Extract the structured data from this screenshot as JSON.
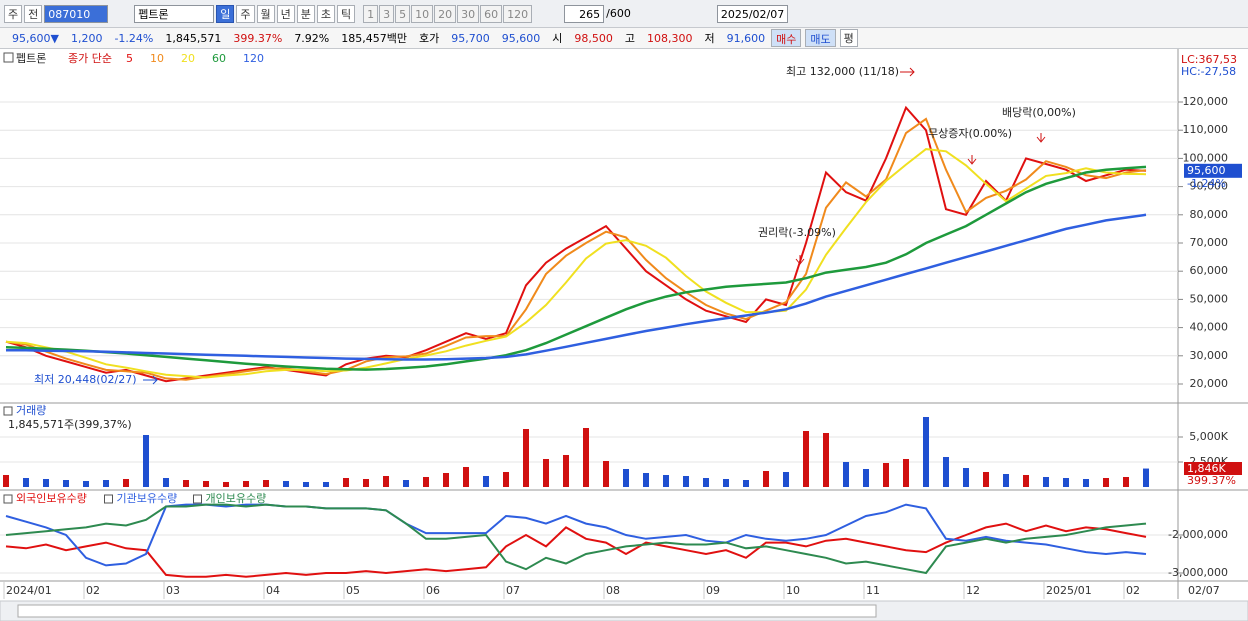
{
  "toolbar": {
    "mode": "주",
    "prev": "전",
    "code": "087010",
    "name": "펩트론",
    "periods": [
      "일",
      "주",
      "월",
      "년",
      "분",
      "초",
      "틱"
    ],
    "intervals": [
      "1",
      "3",
      "5",
      "10",
      "20",
      "30",
      "60",
      "120"
    ],
    "count": "265",
    "count_max": "/600",
    "date": "2025/02/07"
  },
  "info_bar": {
    "price": "95,600▼",
    "change": "1,200",
    "change_rate": "-1.24%",
    "volume": "1,845,571",
    "volume_rate": "399.37%",
    "turnover": "7.92%",
    "amount": "185,457백만",
    "quote_label": "호가",
    "ask": "95,700",
    "bid": "95,600",
    "open_label": "시",
    "open": "98,500",
    "high_label": "고",
    "high": "108,300",
    "low_label": "저",
    "low": "91,600",
    "buy": "매수",
    "sell": "매도",
    "avg": "평"
  },
  "chart_data": [
    {
      "type": "line",
      "title": "펩트론",
      "legend_title": "종가 단순",
      "categories": [
        "2024/01",
        null,
        null,
        null,
        "02",
        null,
        null,
        null,
        "03",
        null,
        null,
        null,
        null,
        "04",
        null,
        null,
        null,
        "05",
        null,
        null,
        null,
        "06",
        null,
        null,
        null,
        "07",
        null,
        null,
        null,
        null,
        "08",
        null,
        null,
        null,
        null,
        "09",
        null,
        null,
        null,
        "10",
        null,
        null,
        null,
        "11",
        null,
        null,
        null,
        null,
        "12",
        null,
        null,
        null,
        "2025/01",
        null,
        null,
        null,
        "02",
        null
      ],
      "x_end_label": "02/07",
      "ylim": [
        13260,
        137730
      ],
      "yticks": [
        {
          "value": 20000,
          "label": "20,000"
        },
        {
          "value": 30000,
          "label": "30,000"
        },
        {
          "value": 40000,
          "label": "40,000"
        },
        {
          "value": 50000,
          "label": "50,000"
        },
        {
          "value": 60000,
          "label": "60,000"
        },
        {
          "value": 70000,
          "label": "70,000"
        },
        {
          "value": 80000,
          "label": "80,000"
        },
        {
          "value": 90000,
          "label": "90,000"
        },
        {
          "value": 100000,
          "label": "100,000"
        },
        {
          "value": 110000,
          "label": "110,000"
        },
        {
          "value": 120000,
          "label": "120,000"
        }
      ],
      "grid": true,
      "series": [
        {
          "name": "5",
          "color": "#e01010",
          "values": [
            35000,
            33000,
            30000,
            28000,
            26000,
            24000,
            25000,
            23000,
            21000,
            22000,
            23000,
            24000,
            25000,
            26000,
            25000,
            24000,
            23000,
            27000,
            29000,
            30000,
            29500,
            32000,
            35000,
            38000,
            36000,
            38000,
            55000,
            63000,
            68000,
            72000,
            76000,
            68000,
            60000,
            55000,
            50000,
            46000,
            44000,
            42000,
            50000,
            48000,
            70000,
            95000,
            88000,
            85000,
            100000,
            118000,
            110000,
            82000,
            80000,
            92000,
            85000,
            100000,
            98000,
            96000,
            92000,
            94000,
            96000,
            95600
          ]
        },
        {
          "name": "10",
          "color": "#f08a1c",
          "values": [
            35000,
            34000,
            31500,
            29000,
            27000,
            25000,
            24500,
            24000,
            22000,
            21500,
            22500,
            23500,
            24500,
            25500,
            25500,
            24500,
            23500,
            25000,
            28000,
            29500,
            29800,
            30800,
            33500,
            36500,
            37000,
            37000,
            46500,
            59000,
            65500,
            70000,
            74000,
            72000,
            64000,
            57500,
            52500,
            48000,
            45000,
            43000,
            46000,
            49000,
            59000,
            82500,
            91500,
            86500,
            92500,
            109000,
            114000,
            96000,
            81000,
            86000,
            88500,
            92500,
            99000,
            97000,
            94000,
            93000,
            95000,
            95800
          ]
        },
        {
          "name": "20",
          "color": "#f0e020",
          "values": [
            35000,
            34500,
            33000,
            31500,
            29300,
            27000,
            25800,
            24500,
            23300,
            22800,
            22300,
            23000,
            23500,
            24500,
            25000,
            25000,
            24500,
            24800,
            25800,
            27300,
            28900,
            30100,
            31600,
            33600,
            35300,
            36800,
            41800,
            48000,
            56000,
            64500,
            69800,
            71000,
            69000,
            64800,
            58300,
            52800,
            48800,
            45500,
            45500,
            46000,
            53500,
            65800,
            75300,
            84500,
            92000,
            97800,
            103300,
            102500,
            97500,
            91000,
            84800,
            89300,
            93800,
            94800,
            96500,
            95000,
            94500,
            94400
          ]
        },
        {
          "name": "60",
          "color": "#1e9a3c",
          "values": [
            33000,
            32800,
            32500,
            32200,
            31800,
            31300,
            30800,
            30200,
            29600,
            29000,
            28400,
            27800,
            27200,
            26700,
            26200,
            25800,
            25400,
            25200,
            25100,
            25300,
            25700,
            26200,
            27000,
            28000,
            29000,
            30200,
            32000,
            34500,
            37500,
            40500,
            43500,
            46500,
            49000,
            51000,
            52500,
            53500,
            54500,
            55000,
            55500,
            56000,
            57500,
            59500,
            60500,
            61500,
            63000,
            66000,
            70000,
            73000,
            76000,
            80000,
            84000,
            88000,
            91000,
            93000,
            95000,
            96000,
            96500,
            97000
          ]
        },
        {
          "name": "120",
          "color": "#2f5fe0",
          "values": [
            32000,
            32000,
            31800,
            31700,
            31600,
            31400,
            31200,
            31000,
            30800,
            30600,
            30400,
            30200,
            30000,
            29800,
            29600,
            29400,
            29200,
            29000,
            28900,
            28800,
            28700,
            28700,
            28800,
            29000,
            29200,
            29600,
            30500,
            31800,
            33200,
            34600,
            36000,
            37400,
            38800,
            40000,
            41200,
            42300,
            43300,
            44300,
            45300,
            46500,
            48500,
            51000,
            53000,
            55000,
            57000,
            59000,
            61000,
            63000,
            65000,
            67000,
            69000,
            71000,
            73000,
            75000,
            76500,
            78000,
            79000,
            80000
          ]
        }
      ],
      "annotations": [
        "최고 132,000 (11/18)",
        "최저 20,448(02/27)",
        "권리락(-3.09%)",
        "무상증자(0.00%)",
        "배당락(0,00%)"
      ],
      "corner_labels": [
        "LC:367,53",
        "HC:-27,58"
      ],
      "last_price_label": "95,600",
      "last_change_label": "-1.24%"
    },
    {
      "type": "bar",
      "title": "거래량",
      "subtitle": "1,845,571주(399,37%)",
      "up_color": "#d01010",
      "down_color": "#1f4fd0",
      "ylim": [
        0,
        8200000
      ],
      "yticks": [
        {
          "value": 2500000,
          "label": "2,500K"
        },
        {
          "value": 5000000,
          "label": "5,000K"
        }
      ],
      "values": [
        1200000,
        900000,
        800000,
        700000,
        600000,
        700000,
        800000,
        5200000,
        900000,
        700000,
        600000,
        500000,
        600000,
        700000,
        600000,
        500000,
        500000,
        900000,
        800000,
        1100000,
        700000,
        1000000,
        1400000,
        2000000,
        1100000,
        1500000,
        5800000,
        2800000,
        3200000,
        5900000,
        2600000,
        1800000,
        1400000,
        1200000,
        1100000,
        900000,
        800000,
        700000,
        1600000,
        1500000,
        5600000,
        5400000,
        2500000,
        1800000,
        2400000,
        2800000,
        7000000,
        3000000,
        1900000,
        1500000,
        1300000,
        1200000,
        1000000,
        900000,
        800000,
        900000,
        1000000,
        1845571
      ],
      "last_value_label": "1,846K",
      "last_rate_label": "399.37%"
    },
    {
      "type": "line",
      "ylim": [
        -3184000,
        -868000
      ],
      "yticks": [
        {
          "value": -2000000,
          "label": "-2,000,000"
        },
        {
          "value": -3000000,
          "label": "-3,000,000"
        }
      ],
      "series": [
        {
          "name": "외국인보유수량",
          "color": "#e01010",
          "values": [
            -2300000,
            -2350000,
            -2250000,
            -2400000,
            -2300000,
            -2200000,
            -2350000,
            -2400000,
            -3050000,
            -3100000,
            -3100000,
            -3050000,
            -3100000,
            -3050000,
            -3000000,
            -3050000,
            -3000000,
            -3000000,
            -2950000,
            -3000000,
            -2950000,
            -2900000,
            -2950000,
            -2900000,
            -2850000,
            -2300000,
            -2000000,
            -2300000,
            -1800000,
            -2100000,
            -2200000,
            -2500000,
            -2200000,
            -2300000,
            -2400000,
            -2500000,
            -2400000,
            -2600000,
            -2200000,
            -2200000,
            -2300000,
            -2150000,
            -2100000,
            -2200000,
            -2300000,
            -2400000,
            -2450000,
            -2200000,
            -2000000,
            -1800000,
            -1700000,
            -1900000,
            -1750000,
            -1900000,
            -1800000,
            -1850000,
            -1950000,
            -2050000
          ]
        },
        {
          "name": "기관보유수량",
          "color": "#2f5fe0",
          "values": [
            -1500000,
            -1650000,
            -1800000,
            -2000000,
            -2600000,
            -2800000,
            -2750000,
            -2500000,
            -1250000,
            -1200000,
            -1200000,
            -1250000,
            -1200000,
            -1200000,
            -1250000,
            -1250000,
            -1300000,
            -1300000,
            -1300000,
            -1350000,
            -1700000,
            -1950000,
            -1950000,
            -1950000,
            -1950000,
            -1500000,
            -1550000,
            -1700000,
            -1500000,
            -1700000,
            -1800000,
            -2000000,
            -2100000,
            -2050000,
            -2000000,
            -2150000,
            -2200000,
            -2000000,
            -2100000,
            -2150000,
            -2100000,
            -2000000,
            -1750000,
            -1500000,
            -1400000,
            -1200000,
            -1300000,
            -2100000,
            -2150000,
            -2050000,
            -2150000,
            -2200000,
            -2250000,
            -2350000,
            -2450000,
            -2500000,
            -2450000,
            -2500000
          ]
        },
        {
          "name": "개인보유수량",
          "color": "#2e8a50",
          "values": [
            -2000000,
            -1950000,
            -1900000,
            -1850000,
            -1800000,
            -1700000,
            -1750000,
            -1600000,
            -1250000,
            -1250000,
            -1200000,
            -1200000,
            -1250000,
            -1200000,
            -1250000,
            -1250000,
            -1300000,
            -1300000,
            -1300000,
            -1350000,
            -1700000,
            -2100000,
            -2100000,
            -2050000,
            -2000000,
            -2700000,
            -2900000,
            -2600000,
            -2750000,
            -2500000,
            -2400000,
            -2300000,
            -2250000,
            -2200000,
            -2250000,
            -2250000,
            -2200000,
            -2350000,
            -2300000,
            -2400000,
            -2500000,
            -2600000,
            -2750000,
            -2700000,
            -2800000,
            -2900000,
            -3000000,
            -2300000,
            -2200000,
            -2100000,
            -2200000,
            -2100000,
            -2050000,
            -2000000,
            -1900000,
            -1800000,
            -1750000,
            -1700000
          ]
        }
      ]
    }
  ]
}
